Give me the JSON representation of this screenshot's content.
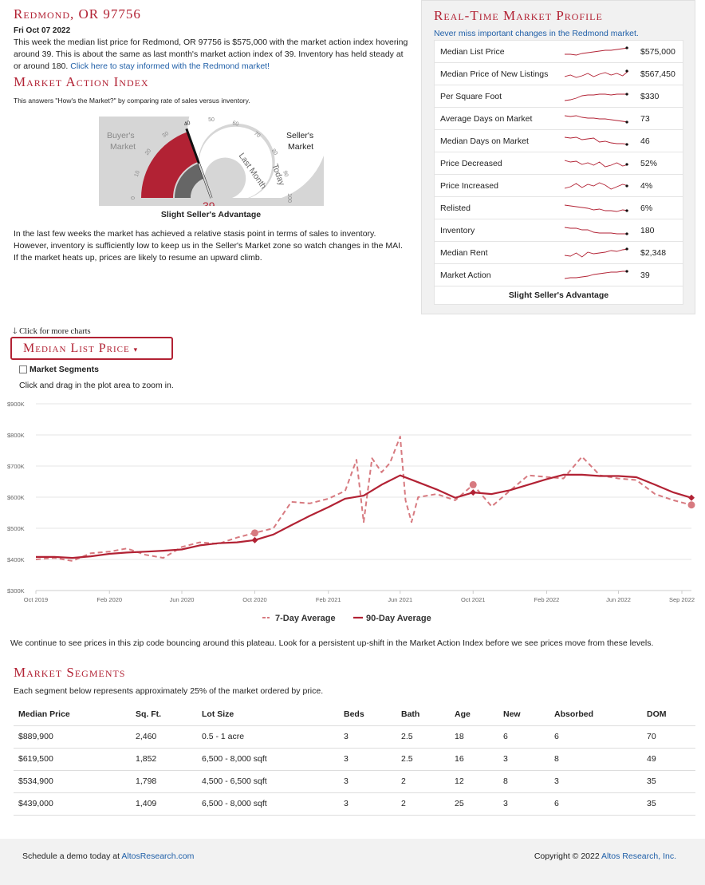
{
  "header": {
    "title": "Redmond, OR 97756",
    "date": "Fri Oct 07 2022",
    "summary": "This week the median list price for Redmond, OR 97756 is $575,000 with the market action index hovering around 39. This is about the same as last month's market action index of 39. Inventory has held steady at or around 180.",
    "summary_link": "Click here to stay informed with the Redmond market!"
  },
  "mai": {
    "title": "Market Action Index",
    "subtitle": "This answers \"How's the Market?\" by comparing rate of sales versus inventory.",
    "buyers_label": "Buyer's Market",
    "sellers_label": "Seller's Market",
    "last_month_label": "Last Month",
    "today_label": "Today",
    "value": 39,
    "value_label": "39",
    "ticks": [
      "0",
      "10",
      "20",
      "30",
      "40",
      "50",
      "60",
      "70",
      "80",
      "90",
      "100"
    ],
    "caption": "Slight Seller's Advantage",
    "description": "In the last few weeks the market has achieved a relative stasis point in terms of sales to inventory. However, inventory is sufficiently low to keep us in the Seller's Market zone so watch changes in the MAI. If the market heats up, prices are likely to resume an upward climb."
  },
  "profile": {
    "title": "Real-Time Market Profile",
    "subtitle": "Never miss important changes in the Redmond market.",
    "rows": [
      {
        "label": "Median List Price",
        "value": "$575,000",
        "trend": [
          8,
          8,
          7,
          9,
          10,
          11,
          12,
          13,
          13,
          14,
          15,
          16
        ]
      },
      {
        "label": "Median Price of New Listings",
        "value": "$567,450",
        "trend": [
          8,
          10,
          7,
          9,
          12,
          8,
          11,
          13,
          10,
          12,
          9,
          15
        ]
      },
      {
        "label": "Per Square Foot",
        "value": "$330",
        "trend": [
          6,
          7,
          9,
          12,
          13,
          13,
          14,
          14,
          13,
          14,
          14,
          14
        ]
      },
      {
        "label": "Average Days on Market",
        "value": "73",
        "trend": [
          15,
          14,
          15,
          13,
          12,
          12,
          11,
          11,
          10,
          9,
          8,
          7
        ]
      },
      {
        "label": "Median Days on Market",
        "value": "46",
        "trend": [
          16,
          15,
          16,
          13,
          14,
          15,
          10,
          11,
          9,
          8,
          8,
          7
        ]
      },
      {
        "label": "Price Decreased",
        "value": "52%",
        "trend": [
          15,
          13,
          14,
          10,
          12,
          9,
          13,
          7,
          9,
          12,
          8,
          10
        ]
      },
      {
        "label": "Price Increased",
        "value": "4%",
        "trend": [
          8,
          10,
          14,
          9,
          13,
          11,
          15,
          12,
          7,
          10,
          13,
          11
        ]
      },
      {
        "label": "Relisted",
        "value": "6%",
        "trend": [
          15,
          14,
          13,
          12,
          11,
          9,
          10,
          8,
          8,
          7,
          9,
          8
        ]
      },
      {
        "label": "Inventory",
        "value": "180",
        "trend": [
          15,
          14,
          14,
          12,
          12,
          9,
          8,
          8,
          8,
          7,
          7,
          7
        ]
      },
      {
        "label": "Median Rent",
        "value": "$2,348",
        "trend": [
          8,
          7,
          11,
          6,
          12,
          10,
          11,
          12,
          14,
          13,
          15,
          16
        ]
      },
      {
        "label": "Market Action",
        "value": "39",
        "trend": [
          7,
          8,
          8,
          9,
          10,
          12,
          13,
          14,
          15,
          15,
          16,
          16
        ]
      }
    ],
    "caption": "Slight Seller's Advantage"
  },
  "controls": {
    "more_charts": "Click for more charts",
    "dropdown_label": "Median List Price",
    "segments_label": "Market Segments",
    "zoom_hint": "Click and drag in the plot area to zoom in."
  },
  "chart_data": {
    "type": "line",
    "title": "",
    "xlabel": "",
    "ylabel": "",
    "x_ticks": [
      "Oct 2019",
      "Feb 2020",
      "Jun 2020",
      "Oct 2020",
      "Feb 2021",
      "Jun 2021",
      "Oct 2021",
      "Feb 2022",
      "Jun 2022",
      "Sep 2022"
    ],
    "y_ticks": [
      "$300K",
      "$400K",
      "$500K",
      "$600K",
      "$700K",
      "$800K",
      "$900K"
    ],
    "ylim": [
      300000,
      900000
    ],
    "grid": true,
    "legend_position": "bottom",
    "series": [
      {
        "name": "7-Day Average",
        "style": "dashed",
        "color": "#d77a80",
        "x": [
          "2019-10-01",
          "2019-11-01",
          "2019-12-01",
          "2020-01-01",
          "2020-02-01",
          "2020-03-01",
          "2020-04-01",
          "2020-05-01",
          "2020-06-01",
          "2020-07-01",
          "2020-08-01",
          "2020-09-01",
          "2020-10-01",
          "2020-11-01",
          "2020-12-01",
          "2021-01-01",
          "2021-02-01",
          "2021-03-01",
          "2021-03-20",
          "2021-04-01",
          "2021-04-15",
          "2021-05-01",
          "2021-05-15",
          "2021-06-01",
          "2021-06-10",
          "2021-06-20",
          "2021-07-01",
          "2021-08-01",
          "2021-09-01",
          "2021-10-01",
          "2021-11-01",
          "2021-12-01",
          "2022-01-01",
          "2022-02-01",
          "2022-03-01",
          "2022-04-01",
          "2022-05-01",
          "2022-06-01",
          "2022-07-01",
          "2022-08-01",
          "2022-09-01",
          "2022-10-01"
        ],
        "values": [
          400000,
          405000,
          395000,
          420000,
          425000,
          435000,
          415000,
          405000,
          440000,
          455000,
          450000,
          470000,
          485000,
          500000,
          585000,
          580000,
          595000,
          620000,
          720000,
          520000,
          725000,
          680000,
          710000,
          795000,
          590000,
          520000,
          600000,
          610000,
          590000,
          640000,
          570000,
          620000,
          670000,
          665000,
          660000,
          730000,
          670000,
          660000,
          655000,
          610000,
          590000,
          575000
        ]
      },
      {
        "name": "90-Day Average",
        "style": "solid",
        "color": "#b22234",
        "x": [
          "2019-10-01",
          "2019-11-01",
          "2019-12-01",
          "2020-01-01",
          "2020-02-01",
          "2020-03-01",
          "2020-04-01",
          "2020-05-01",
          "2020-06-01",
          "2020-07-01",
          "2020-08-01",
          "2020-09-01",
          "2020-10-01",
          "2020-11-01",
          "2020-12-01",
          "2021-01-01",
          "2021-02-01",
          "2021-03-01",
          "2021-04-01",
          "2021-05-01",
          "2021-06-01",
          "2021-07-01",
          "2021-08-01",
          "2021-09-01",
          "2021-10-01",
          "2021-11-01",
          "2021-12-01",
          "2022-01-01",
          "2022-02-01",
          "2022-03-01",
          "2022-04-01",
          "2022-05-01",
          "2022-06-01",
          "2022-07-01",
          "2022-08-01",
          "2022-09-01",
          "2022-10-01"
        ],
        "values": [
          408000,
          408000,
          405000,
          410000,
          418000,
          422000,
          425000,
          428000,
          432000,
          445000,
          452000,
          455000,
          462000,
          480000,
          510000,
          540000,
          568000,
          595000,
          605000,
          640000,
          670000,
          648000,
          625000,
          598000,
          615000,
          610000,
          622000,
          640000,
          658000,
          672000,
          672000,
          668000,
          668000,
          664000,
          640000,
          615000,
          598000
        ]
      }
    ]
  },
  "plateau_text": "We continue to see prices in this zip code bouncing around this plateau. Look for a persistent up-shift in the Market Action Index before we see prices move from these levels.",
  "segments": {
    "title": "Market Segments",
    "subtitle": "Each segment below represents approximately 25% of the market ordered by price.",
    "columns": [
      "Median Price",
      "Sq. Ft.",
      "Lot Size",
      "Beds",
      "Bath",
      "Age",
      "New",
      "Absorbed",
      "DOM"
    ],
    "rows": [
      [
        "$889,900",
        "2,460",
        "0.5 - 1 acre",
        "3",
        "2.5",
        "18",
        "6",
        "6",
        "70"
      ],
      [
        "$619,500",
        "1,852",
        "6,500 - 8,000 sqft",
        "3",
        "2.5",
        "16",
        "3",
        "8",
        "49"
      ],
      [
        "$534,900",
        "1,798",
        "4,500 - 6,500 sqft",
        "3",
        "2",
        "12",
        "8",
        "3",
        "35"
      ],
      [
        "$439,000",
        "1,409",
        "6,500 - 8,000 sqft",
        "3",
        "2",
        "25",
        "3",
        "6",
        "35"
      ]
    ]
  },
  "footer": {
    "demo_text": "Schedule a demo today at",
    "demo_link": "AltosResearch.com",
    "copyright": "Copyright © 2022",
    "company_link": "Altos Research, Inc."
  },
  "colors": {
    "accent": "#b22234",
    "link": "#1f5fa8",
    "dashed_series": "#d77a80"
  }
}
